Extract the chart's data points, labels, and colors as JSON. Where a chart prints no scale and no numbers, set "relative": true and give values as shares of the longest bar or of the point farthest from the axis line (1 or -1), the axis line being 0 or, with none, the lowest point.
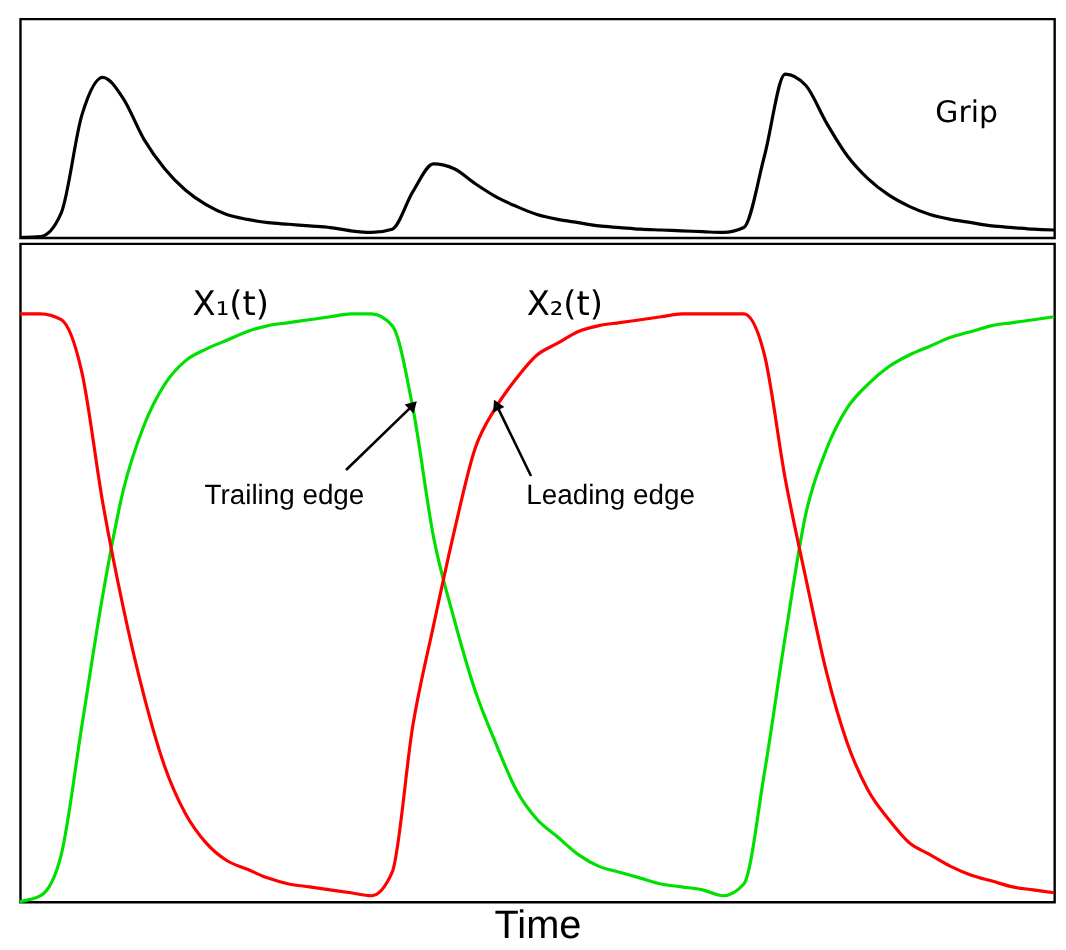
{
  "chart_data": [
    {
      "type": "line",
      "relative": true,
      "tick_labels": false,
      "categories": [
        null,
        null,
        null,
        null,
        null,
        null,
        null,
        null,
        null,
        null,
        null,
        null,
        null,
        null,
        null,
        null,
        null,
        null,
        null,
        null,
        null,
        null,
        null,
        null,
        null,
        null,
        null,
        null,
        null,
        null,
        null,
        null,
        null,
        null,
        null,
        null,
        null,
        null,
        null,
        null,
        null,
        null,
        null,
        null,
        null,
        null,
        null,
        null,
        null,
        null,
        null
      ],
      "series": [
        {
          "name": "Grip",
          "color": "#000000",
          "values": [
            0,
            0.005,
            0.15,
            0.75,
            0.98,
            0.85,
            0.6,
            0.42,
            0.29,
            0.2,
            0.14,
            0.11,
            0.09,
            0.08,
            0.07,
            0.06,
            0.04,
            0.03,
            0.05,
            0.28,
            0.45,
            0.42,
            0.33,
            0.25,
            0.19,
            0.14,
            0.11,
            0.09,
            0.07,
            0.06,
            0.05,
            0.045,
            0.04,
            0.035,
            0.03,
            0.06,
            0.5,
            1.0,
            0.93,
            0.7,
            0.5,
            0.36,
            0.26,
            0.19,
            0.14,
            0.11,
            0.09,
            0.07,
            0.06,
            0.05,
            0.045
          ]
        }
      ]
    },
    {
      "type": "line",
      "relative": true,
      "tick_labels": false,
      "xlabel": "Time",
      "categories": [
        null,
        null,
        null,
        null,
        null,
        null,
        null,
        null,
        null,
        null,
        null,
        null,
        null,
        null,
        null,
        null,
        null,
        null,
        null,
        null,
        null,
        null,
        null,
        null,
        null,
        null,
        null,
        null,
        null,
        null,
        null,
        null,
        null,
        null,
        null,
        null,
        null,
        null,
        null,
        null,
        null,
        null,
        null,
        null,
        null,
        null,
        null,
        null,
        null,
        null,
        null
      ],
      "annotations": [
        "Trailing edge",
        "Leading edge"
      ],
      "series": [
        {
          "name": "X₁(t)",
          "color": "#00e000",
          "values": [
            0,
            0.01,
            0.08,
            0.3,
            0.52,
            0.7,
            0.81,
            0.88,
            0.92,
            0.94,
            0.955,
            0.97,
            0.98,
            0.985,
            0.99,
            0.995,
            1,
            1,
            0.98,
            0.84,
            0.62,
            0.48,
            0.36,
            0.27,
            0.19,
            0.14,
            0.11,
            0.08,
            0.06,
            0.05,
            0.04,
            0.03,
            0.025,
            0.02,
            0.01,
            0.03,
            0.22,
            0.45,
            0.66,
            0.77,
            0.84,
            0.88,
            0.91,
            0.93,
            0.945,
            0.96,
            0.97,
            0.98,
            0.985,
            0.99,
            0.995
          ]
        },
        {
          "name": "X₂(t)",
          "color": "#ff0000",
          "values": [
            1,
            1,
            0.99,
            0.9,
            0.68,
            0.5,
            0.35,
            0.23,
            0.15,
            0.1,
            0.07,
            0.055,
            0.04,
            0.03,
            0.025,
            0.02,
            0.015,
            0.01,
            0.05,
            0.3,
            0.47,
            0.63,
            0.77,
            0.84,
            0.89,
            0.93,
            0.95,
            0.97,
            0.98,
            0.985,
            0.99,
            0.995,
            1,
            1,
            1,
            1,
            0.93,
            0.72,
            0.55,
            0.39,
            0.27,
            0.19,
            0.14,
            0.1,
            0.08,
            0.06,
            0.045,
            0.035,
            0.025,
            0.02,
            0.015
          ]
        }
      ]
    }
  ]
}
